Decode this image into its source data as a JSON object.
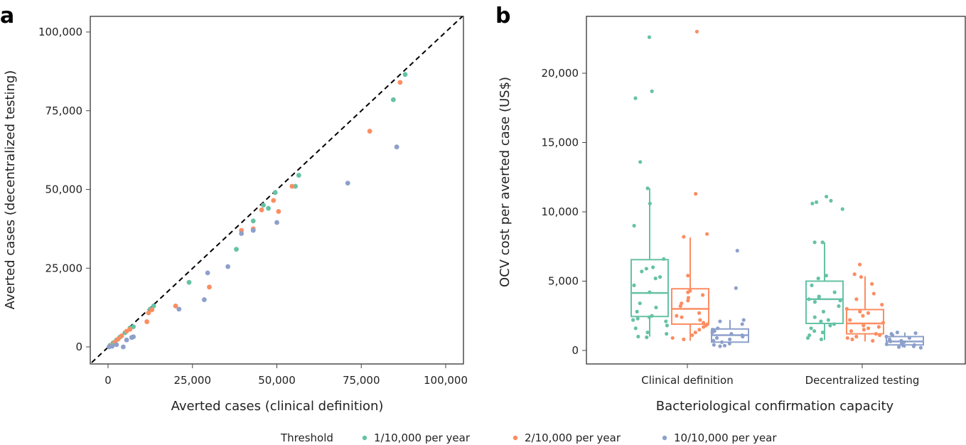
{
  "colors": {
    "green": "#66c2a5",
    "orange": "#fc8d62",
    "blue": "#8da0cb"
  },
  "legend": {
    "title": "Threshold",
    "items": [
      {
        "label": "1/10,000 per year",
        "color_key": "green"
      },
      {
        "label": "2/10,000 per year",
        "color_key": "orange"
      },
      {
        "label": "10/10,000 per year",
        "color_key": "blue"
      }
    ],
    "placement": "bottom"
  },
  "chart_data": [
    {
      "panel": "a",
      "type": "scatter",
      "title": "",
      "xlabel": "Averted cases (clinical definition)",
      "ylabel": "Averted cases (decentralized testing)",
      "xlim": [
        -5000,
        105000
      ],
      "ylim": [
        -5500,
        105000
      ],
      "xticks": [
        0,
        25000,
        50000,
        75000,
        100000
      ],
      "xtick_labels": [
        "0",
        "25,000",
        "50,000",
        "75,000",
        "100,000"
      ],
      "yticks": [
        0,
        25000,
        50000,
        75000,
        100000
      ],
      "ytick_labels": [
        "0",
        "25,000",
        "50,000",
        "75,000",
        "100,000"
      ],
      "reference_line": "y = x (dashed)",
      "grid": false,
      "series": [
        {
          "name": "1/10,000 per year",
          "color_key": "green",
          "points": [
            [
              600,
              500
            ],
            [
              1500,
              1300
            ],
            [
              2500,
              2200
            ],
            [
              3500,
              3100
            ],
            [
              5000,
              4500
            ],
            [
              6500,
              6000
            ],
            [
              7500,
              6400
            ],
            [
              12500,
              12000
            ],
            [
              13500,
              13000
            ],
            [
              24000,
              20500
            ],
            [
              38000,
              31000
            ],
            [
              43000,
              40000
            ],
            [
              46000,
              45000
            ],
            [
              47500,
              44000
            ],
            [
              49500,
              49000
            ],
            [
              55500,
              51000
            ],
            [
              56500,
              54500
            ],
            [
              84500,
              78500
            ],
            [
              88000,
              86500
            ]
          ]
        },
        {
          "name": "2/10,000 per year",
          "color_key": "orange",
          "points": [
            [
              800,
              300
            ],
            [
              2000,
              1500
            ],
            [
              3000,
              2500
            ],
            [
              4000,
              3500
            ],
            [
              5500,
              5000
            ],
            [
              6500,
              5600
            ],
            [
              11500,
              8000
            ],
            [
              12000,
              10800
            ],
            [
              13000,
              11800
            ],
            [
              20000,
              13000
            ],
            [
              30000,
              19000
            ],
            [
              39500,
              37000
            ],
            [
              43000,
              37500
            ],
            [
              45500,
              43500
            ],
            [
              49000,
              46500
            ],
            [
              50500,
              43000
            ],
            [
              54500,
              51000
            ],
            [
              77500,
              68500
            ],
            [
              86500,
              84000
            ]
          ]
        },
        {
          "name": "10/10,000 per year",
          "color_key": "blue",
          "points": [
            [
              300,
              0
            ],
            [
              1200,
              200
            ],
            [
              2500,
              700
            ],
            [
              4500,
              0
            ],
            [
              5500,
              2200
            ],
            [
              7000,
              3000
            ],
            [
              7500,
              3200
            ],
            [
              21000,
              12000
            ],
            [
              28500,
              15000
            ],
            [
              29500,
              23500
            ],
            [
              35500,
              25500
            ],
            [
              39500,
              36000
            ],
            [
              43000,
              37000
            ],
            [
              50000,
              39500
            ],
            [
              71000,
              52000
            ],
            [
              85500,
              63500
            ]
          ]
        }
      ]
    },
    {
      "panel": "b",
      "type": "box",
      "title": "",
      "xlabel": "Bacteriological confirmation capacity",
      "ylabel": "OCV cost per averted case (US$)",
      "categories": [
        "Clinical definition",
        "Decentralized testing"
      ],
      "ylim": [
        -900,
        24000
      ],
      "yticks": [
        0,
        5000,
        10000,
        15000,
        20000
      ],
      "ytick_labels": [
        "0",
        "5,000",
        "10,000",
        "15,000",
        "20,000"
      ],
      "grid": false,
      "series": [
        {
          "name": "1/10,000 per year",
          "color_key": "green",
          "boxes": [
            {
              "category": "Clinical definition",
              "whisker_low": 1000,
              "q1": 2450,
              "median": 4150,
              "q3": 6550,
              "whisker_high": 11700,
              "points": [
                22600,
                18700,
                18200,
                13600,
                11700,
                10600,
                9000,
                6600,
                6000,
                5900,
                5700,
                5300,
                5200,
                4700,
                4200,
                3400,
                3100,
                2800,
                2500,
                2400,
                2300,
                2200,
                2100,
                1800,
                1600,
                1300,
                1200,
                1000,
                950
              ]
            },
            {
              "category": "Decentralized testing",
              "whisker_low": 750,
              "q1": 1950,
              "median": 3700,
              "q3": 5000,
              "whisker_high": 7800,
              "points": [
                11100,
                10800,
                10700,
                10600,
                10200,
                7800,
                7800,
                5400,
                5200,
                4700,
                4200,
                3900,
                3800,
                3700,
                3600,
                3500,
                3200,
                2800,
                2400,
                2200,
                2100,
                1900,
                1800,
                1600,
                1400,
                1300,
                1100,
                900,
                800
              ]
            }
          ]
        },
        {
          "name": "2/10,000 per year",
          "color_key": "orange",
          "boxes": [
            {
              "category": "Clinical definition",
              "whisker_low": 700,
              "q1": 1900,
              "median": 3000,
              "q3": 4450,
              "whisker_high": 8150,
              "points": [
                23000,
                11300,
                8400,
                8200,
                5400,
                4300,
                4200,
                4000,
                3800,
                3600,
                3400,
                3200,
                2700,
                2500,
                2400,
                2200,
                2000,
                1900,
                1800,
                1700,
                1500,
                1300,
                1100,
                900,
                800
              ]
            },
            {
              "category": "Decentralized testing",
              "whisker_low": 650,
              "q1": 1200,
              "median": 1950,
              "q3": 2950,
              "whisker_high": 5350,
              "points": [
                6200,
                5500,
                5300,
                4800,
                4100,
                3700,
                3300,
                3000,
                2800,
                2700,
                2500,
                2200,
                2000,
                1800,
                1700,
                1600,
                1500,
                1400,
                1200,
                1100,
                1000,
                900,
                800,
                700
              ]
            }
          ]
        },
        {
          "name": "10/10,000 per year",
          "color_key": "blue",
          "boxes": [
            {
              "category": "Clinical definition",
              "whisker_low": 450,
              "q1": 600,
              "median": 1100,
              "q3": 1550,
              "whisker_high": 2200,
              "points": [
                7200,
                4500,
                2200,
                2100,
                1900,
                1600,
                1500,
                1400,
                1300,
                1200,
                1100,
                1000,
                900,
                800,
                700,
                600,
                500,
                400,
                350,
                300
              ]
            },
            {
              "category": "Decentralized testing",
              "whisker_low": 200,
              "q1": 400,
              "median": 650,
              "q3": 1000,
              "whisker_high": 1300,
              "points": [
                1300,
                1250,
                1200,
                1100,
                1000,
                900,
                800,
                700,
                650,
                600,
                500,
                450,
                400,
                350,
                300,
                250,
                200
              ]
            }
          ]
        }
      ]
    }
  ]
}
